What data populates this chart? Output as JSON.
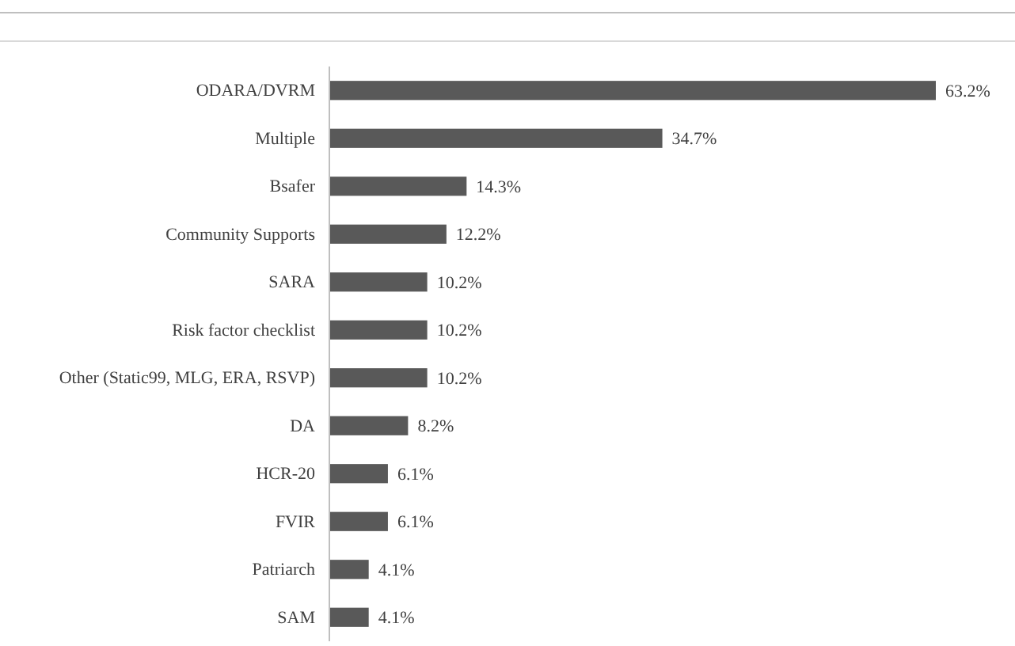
{
  "chart_data": {
    "type": "bar",
    "orientation": "horizontal",
    "categories": [
      "ODARA/DVRM",
      "Multiple",
      "Bsafer",
      "Community Supports",
      "SARA",
      "Risk factor checklist",
      "Other (Static99, MLG, ERA, RSVP)",
      "DA",
      "HCR-20",
      "FVIR",
      "Patriarch",
      "SAM"
    ],
    "values": [
      63.2,
      34.7,
      14.3,
      12.2,
      10.2,
      10.2,
      10.2,
      8.2,
      6.1,
      6.1,
      4.1,
      4.1
    ],
    "value_labels": [
      "63.2%",
      "34.7%",
      "14.3%",
      "12.2%",
      "10.2%",
      "10.2%",
      "10.2%",
      "8.2%",
      "6.1%",
      "6.1%",
      "4.1%",
      "4.1%"
    ],
    "color": "#595959"
  }
}
